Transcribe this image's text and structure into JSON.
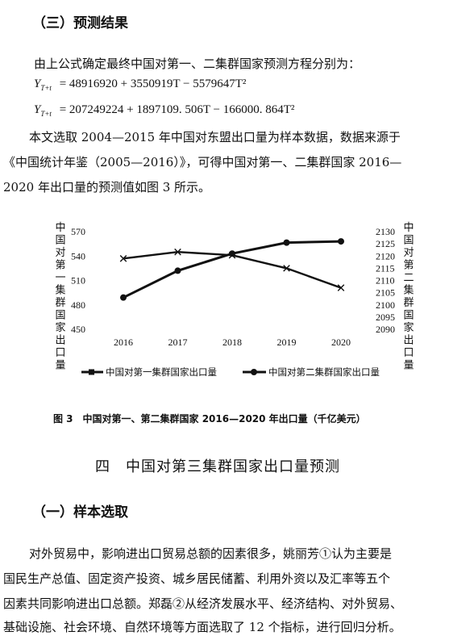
{
  "section_heading": "（三）预测结果",
  "intro_line": "由上公式确定最终中国对第一、二集群国家预测方程分别为：",
  "equations": {
    "eq1_rhs": "= 48916920 + 3550919T − 5579647T²",
    "eq2_rhs": "= 207249224 + 1897109. 506T − 166000. 864T²",
    "lhs_symbol": "Y",
    "lhs_subscript": "T+t"
  },
  "paragraph_lines": [
    "本文选取 2004—2015 年中国对东盟出口量为样本数据，数据来源于",
    "《中国统计年鉴（2005—2016）》，可得中国对第一、二集群国家 2016—",
    "2020 年出口量的预测值如图 3 所示。"
  ],
  "chart_data": {
    "type": "line",
    "categories": [
      "2016",
      "2017",
      "2018",
      "2019",
      "2020"
    ],
    "left_axis": {
      "label": "中国对第一集群国家出口量",
      "ylim": [
        450,
        570
      ],
      "ticks": [
        "570",
        "540",
        "510",
        "480",
        "450"
      ]
    },
    "right_axis": {
      "label": "中国对第二集群国家出口量",
      "ylim": [
        2090,
        2130
      ],
      "ticks": [
        "2130",
        "2125",
        "2120",
        "2115",
        "2110",
        "2105",
        "2100",
        "2095",
        "2090"
      ]
    },
    "series": [
      {
        "name": "中国对第一集群国家出口量",
        "axis": "left",
        "marker": "x",
        "values": [
          537,
          545,
          541,
          525,
          501
        ]
      },
      {
        "name": "中国对第二集群国家出口量",
        "axis": "right",
        "marker": "circle",
        "values": [
          2103,
          2114,
          2121,
          2125.5,
          2126
        ]
      }
    ],
    "legend_position": "bottom",
    "grid": false,
    "caption": "图 3　中国对第一、第二集群国家 2016—2020 年出口量（千亿美元）"
  },
  "chapter_heading": "四　中国对第三集群国家出口量预测",
  "subsection_heading": "（一）样本选取",
  "body_lines": [
    "对外贸易中，影响进出口贸易总额的因素很多，姚丽芳①认为主要是",
    "国民生产总值、固定资产投资、城乡居民储蓄、利用外资以及汇率等五个",
    "因素共同影响进出口总额。郑磊②从经济发展水平、经济结构、对外贸易、",
    "基础设施、社会环境、自然环境等方面选取了 12 个指标，进行回归分析。"
  ],
  "colors": {
    "text": "#111111",
    "line": "#111111",
    "background": "#ffffff"
  }
}
